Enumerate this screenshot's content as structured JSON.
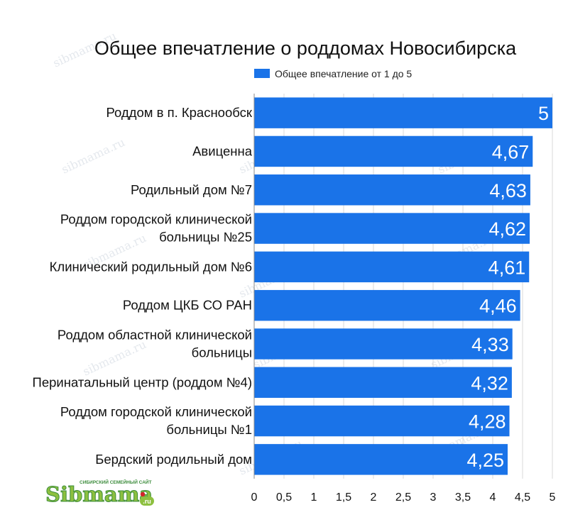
{
  "chart_data": {
    "type": "bar",
    "orientation": "horizontal",
    "title": "Общее впечатление о роддомах Новосибирска",
    "legend": {
      "position": "top",
      "entries": [
        "Общее впечатление от 1 до 5"
      ]
    },
    "categories": [
      [
        "Роддом в п. Краснообск"
      ],
      [
        "Авиценна"
      ],
      [
        "Родильный дом №7"
      ],
      [
        "Роддом городской клинической",
        "больницы №25"
      ],
      [
        "Клинический родильный дом №6"
      ],
      [
        "Роддом ЦКБ СО РАН"
      ],
      [
        "Роддом областной клинической",
        "больницы"
      ],
      [
        "Перинатальный центр (роддом №4)"
      ],
      [
        "Роддом городской клинической",
        "больницы №1"
      ],
      [
        "Бердский родильный дом"
      ]
    ],
    "values": [
      5,
      4.67,
      4.63,
      4.62,
      4.61,
      4.46,
      4.33,
      4.32,
      4.28,
      4.25
    ],
    "value_labels": [
      "5",
      "4,67",
      "4,63",
      "4,62",
      "4,61",
      "4,46",
      "4,33",
      "4,32",
      "4,28",
      "4,25"
    ],
    "xlim": [
      0,
      5
    ],
    "x_ticks": [
      0,
      0.5,
      1,
      1.5,
      2,
      2.5,
      3,
      3.5,
      4,
      4.5,
      5
    ],
    "x_tick_labels": [
      "0",
      "0,5",
      "1",
      "1,5",
      "2",
      "2,5",
      "3",
      "3,5",
      "4",
      "4,5",
      "5"
    ],
    "grid": true,
    "bar_color": "#1a73e8"
  },
  "watermark": "sibmama.ru",
  "logo": {
    "name": "Sibmama",
    "tagline": "СИБИРСКИЙ СЕМЕЙНЫЙ САЙТ",
    "suffix": ".ru",
    "colors": {
      "main": "#8dc03f",
      "outline": "#3c8c3c",
      "badge": "#8dc03f",
      "dot": "#d2232a"
    }
  }
}
